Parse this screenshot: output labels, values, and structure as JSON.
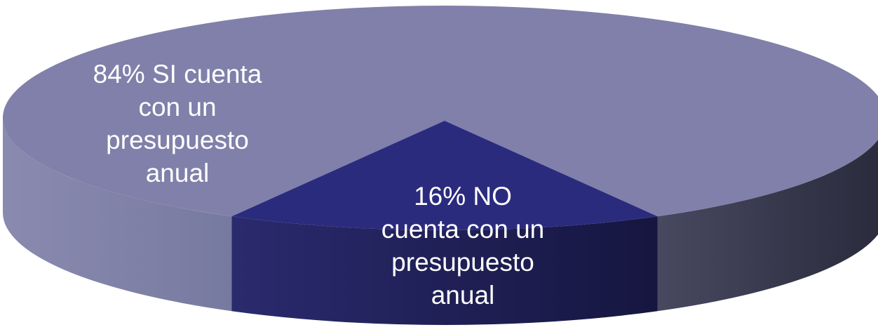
{
  "chart_data": {
    "type": "pie",
    "style": "3d",
    "slices": [
      {
        "label_lines": [
          "84% SI cuenta",
          "con un",
          "presupuesto",
          "anual"
        ],
        "value": 84,
        "color": "#8080aa",
        "side_color": "#6f6f98"
      },
      {
        "label_lines": [
          "16% NO",
          "cuenta con un",
          "presupuesto",
          "anual"
        ],
        "value": 16,
        "color": "#2b2b7e",
        "side_color": "#1c1c55"
      }
    ],
    "legend": "none",
    "data_labels": "inside"
  }
}
